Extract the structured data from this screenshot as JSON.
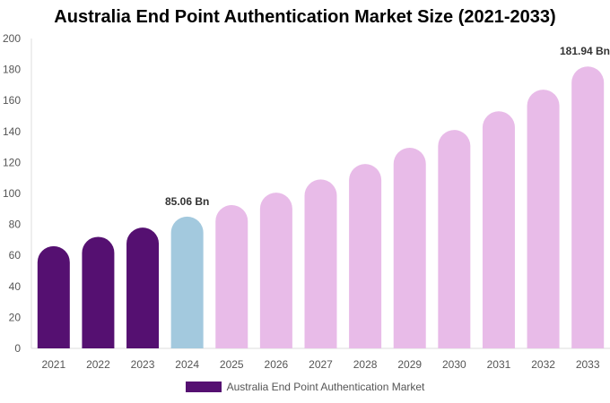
{
  "chart_data": {
    "type": "bar",
    "title": "Australia End Point Authentication Market Size (2021-2033)",
    "categories": [
      "2021",
      "2022",
      "2023",
      "2024",
      "2025",
      "2026",
      "2027",
      "2028",
      "2029",
      "2030",
      "2031",
      "2032",
      "2033"
    ],
    "series": [
      {
        "name": "Australia End Point Authentication Market",
        "values": [
          66,
          72,
          78,
          85.06,
          92.5,
          100.5,
          109,
          119,
          129.5,
          141,
          153,
          167,
          181.94
        ]
      }
    ],
    "data_labels": [
      {
        "category": "2024",
        "text": "85.06 Bn"
      },
      {
        "category": "2033",
        "text": "181.94 Bn"
      }
    ],
    "ylim": [
      0,
      200
    ],
    "yticks": [
      0,
      20,
      40,
      60,
      80,
      100,
      120,
      140,
      160,
      180,
      200
    ],
    "grid": false,
    "legend_position": "bottom",
    "colors": {
      "historical": "#551071",
      "base_year": "#a3c9de",
      "forecast": "#e8bbe8"
    }
  }
}
